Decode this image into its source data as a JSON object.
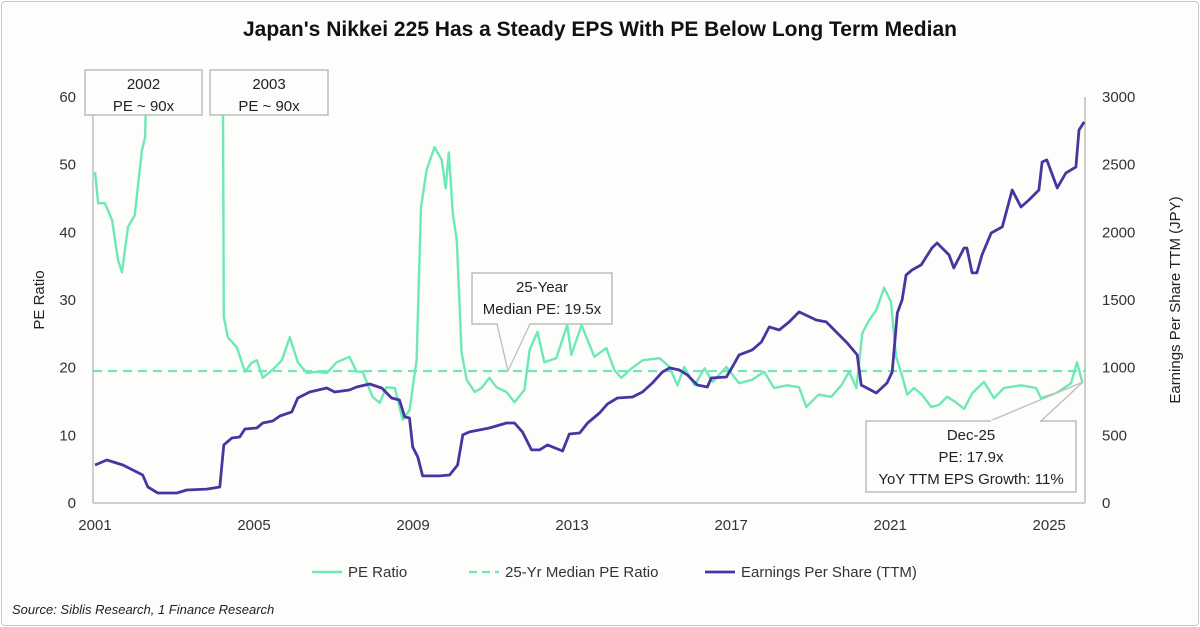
{
  "chart_data": {
    "type": "line",
    "title": "Japan's Nikkei 225 Has a Steady EPS With PE Below Long Term Median",
    "xlabel": "",
    "ylabel_left": "PE Ratio",
    "ylabel_right": "Earnings Per Share TTM (JPY)",
    "xlim": [
      2000.95,
      2025.9
    ],
    "ylim_left": [
      0,
      60
    ],
    "ylim_right": [
      0,
      3000
    ],
    "x_ticks": [
      "2001",
      "2005",
      "2009",
      "2013",
      "2017",
      "2021",
      "2025"
    ],
    "y_ticks_left": [
      "0",
      "10",
      "20",
      "30",
      "40",
      "50",
      "60"
    ],
    "y_ticks_right": [
      "0",
      "500",
      "1000",
      "1500",
      "2000",
      "2500",
      "3000"
    ],
    "grid": false,
    "legend_position": "bottom",
    "legend": [
      "PE Ratio",
      "25-Yr Median PE Ratio",
      "Earnings Per Share (TTM)"
    ],
    "colors": {
      "pe": "#6ee8b8",
      "median": "#6ee8b8",
      "eps": "#4a35a0"
    },
    "median_pe": 19.5,
    "series": [
      {
        "name": "PE Ratio",
        "axis": "left",
        "points": [
          [
            2001.0,
            48.9
          ],
          [
            2001.08,
            44.3
          ],
          [
            2001.25,
            44.3
          ],
          [
            2001.43,
            41.8
          ],
          [
            2001.58,
            35.9
          ],
          [
            2001.68,
            34.1
          ],
          [
            2001.83,
            40.8
          ],
          [
            2002.0,
            42.5
          ],
          [
            2002.18,
            52.1
          ],
          [
            2002.26,
            54
          ],
          [
            2002.4,
            90
          ],
          [
            2004.2,
            90
          ],
          [
            2004.24,
            27.5
          ],
          [
            2004.34,
            24.5
          ],
          [
            2004.57,
            23
          ],
          [
            2004.77,
            19.4
          ],
          [
            2004.94,
            20.7
          ],
          [
            2005.07,
            21.1
          ],
          [
            2005.22,
            18.5
          ],
          [
            2005.47,
            19.7
          ],
          [
            2005.7,
            21.1
          ],
          [
            2005.9,
            24.5
          ],
          [
            2006.1,
            20.8
          ],
          [
            2006.33,
            19.2
          ],
          [
            2006.58,
            19.4
          ],
          [
            2006.83,
            19.2
          ],
          [
            2007.08,
            20.8
          ],
          [
            2007.4,
            21.6
          ],
          [
            2007.58,
            19.4
          ],
          [
            2007.73,
            19.4
          ],
          [
            2007.98,
            15.7
          ],
          [
            2008.16,
            14.8
          ],
          [
            2008.33,
            17.1
          ],
          [
            2008.54,
            17
          ],
          [
            2008.74,
            12.3
          ],
          [
            2008.91,
            13.7
          ],
          [
            2009.09,
            21.1
          ],
          [
            2009.2,
            43.7
          ],
          [
            2009.34,
            49.2
          ],
          [
            2009.54,
            52.6
          ],
          [
            2009.72,
            50.7
          ],
          [
            2009.82,
            46.5
          ],
          [
            2009.9,
            51.8
          ],
          [
            2010.0,
            42.8
          ],
          [
            2010.1,
            38.8
          ],
          [
            2010.22,
            22.2
          ],
          [
            2010.35,
            18.2
          ],
          [
            2010.55,
            16.4
          ],
          [
            2010.72,
            17
          ],
          [
            2010.92,
            18.5
          ],
          [
            2011.1,
            17.1
          ],
          [
            2011.35,
            16.4
          ],
          [
            2011.55,
            14.9
          ],
          [
            2011.8,
            16.7
          ],
          [
            2011.93,
            22.6
          ],
          [
            2012.13,
            25.3
          ],
          [
            2012.3,
            20.8
          ],
          [
            2012.6,
            21.4
          ],
          [
            2012.88,
            26.3
          ],
          [
            2012.98,
            21.9
          ],
          [
            2013.24,
            26.3
          ],
          [
            2013.36,
            24.5
          ],
          [
            2013.56,
            21.6
          ],
          [
            2013.86,
            22.9
          ],
          [
            2014.07,
            19.6
          ],
          [
            2014.24,
            18.5
          ],
          [
            2014.5,
            19.9
          ],
          [
            2014.78,
            21.1
          ],
          [
            2015.2,
            21.4
          ],
          [
            2015.45,
            20.1
          ],
          [
            2015.65,
            17.4
          ],
          [
            2015.82,
            20.1
          ],
          [
            2016.08,
            17.4
          ],
          [
            2016.33,
            19.9
          ],
          [
            2016.53,
            17.9
          ],
          [
            2016.88,
            20.1
          ],
          [
            2017.2,
            17.7
          ],
          [
            2017.53,
            18.2
          ],
          [
            2017.83,
            19.4
          ],
          [
            2018.08,
            17
          ],
          [
            2018.41,
            17.4
          ],
          [
            2018.71,
            17.1
          ],
          [
            2018.89,
            14.2
          ],
          [
            2019.2,
            16
          ],
          [
            2019.52,
            15.7
          ],
          [
            2019.77,
            17.4
          ],
          [
            2019.97,
            19.4
          ],
          [
            2020.15,
            17
          ],
          [
            2020.3,
            25.1
          ],
          [
            2020.47,
            27
          ],
          [
            2020.65,
            28.5
          ],
          [
            2020.85,
            31.8
          ],
          [
            2021.02,
            29.7
          ],
          [
            2021.15,
            21.6
          ],
          [
            2021.28,
            19.2
          ],
          [
            2021.43,
            16
          ],
          [
            2021.6,
            17
          ],
          [
            2021.8,
            16
          ],
          [
            2022.03,
            14.2
          ],
          [
            2022.23,
            14.5
          ],
          [
            2022.43,
            15.7
          ],
          [
            2022.65,
            14.9
          ],
          [
            2022.86,
            13.9
          ],
          [
            2023.06,
            16.2
          ],
          [
            2023.36,
            17.9
          ],
          [
            2023.61,
            15.5
          ],
          [
            2023.86,
            17
          ],
          [
            2024.29,
            17.4
          ],
          [
            2024.67,
            17
          ],
          [
            2024.79,
            15.5
          ],
          [
            2025.17,
            16.2
          ],
          [
            2025.55,
            17.7
          ],
          [
            2025.7,
            20.8
          ],
          [
            2025.83,
            17.9
          ]
        ]
      },
      {
        "name": "Earnings Per Share (TTM)",
        "axis": "right",
        "points": [
          [
            2001.0,
            281
          ],
          [
            2001.3,
            318
          ],
          [
            2001.7,
            281
          ],
          [
            2002.2,
            207
          ],
          [
            2002.33,
            118
          ],
          [
            2002.58,
            74
          ],
          [
            2003.06,
            74
          ],
          [
            2003.31,
            96
          ],
          [
            2003.81,
            103
          ],
          [
            2004.14,
            118
          ],
          [
            2004.24,
            429
          ],
          [
            2004.44,
            480
          ],
          [
            2004.64,
            488
          ],
          [
            2004.77,
            547
          ],
          [
            2005.07,
            554
          ],
          [
            2005.22,
            591
          ],
          [
            2005.47,
            606
          ],
          [
            2005.65,
            643
          ],
          [
            2005.95,
            673
          ],
          [
            2006.1,
            776
          ],
          [
            2006.4,
            820
          ],
          [
            2006.83,
            850
          ],
          [
            2007.03,
            820
          ],
          [
            2007.4,
            835
          ],
          [
            2007.58,
            857
          ],
          [
            2007.91,
            879
          ],
          [
            2008.21,
            850
          ],
          [
            2008.46,
            776
          ],
          [
            2008.66,
            761
          ],
          [
            2008.79,
            636
          ],
          [
            2008.91,
            628
          ],
          [
            2008.99,
            414
          ],
          [
            2009.12,
            340
          ],
          [
            2009.24,
            200
          ],
          [
            2009.67,
            200
          ],
          [
            2009.92,
            207
          ],
          [
            2010.12,
            281
          ],
          [
            2010.25,
            503
          ],
          [
            2010.42,
            525
          ],
          [
            2010.92,
            554
          ],
          [
            2011.35,
            591
          ],
          [
            2011.55,
            591
          ],
          [
            2011.75,
            525
          ],
          [
            2011.98,
            392
          ],
          [
            2012.18,
            392
          ],
          [
            2012.38,
            429
          ],
          [
            2012.76,
            384
          ],
          [
            2012.93,
            510
          ],
          [
            2013.19,
            517
          ],
          [
            2013.39,
            591
          ],
          [
            2013.69,
            665
          ],
          [
            2013.89,
            732
          ],
          [
            2014.14,
            776
          ],
          [
            2014.52,
            783
          ],
          [
            2014.77,
            820
          ],
          [
            2015.02,
            887
          ],
          [
            2015.27,
            968
          ],
          [
            2015.45,
            998
          ],
          [
            2015.7,
            983
          ],
          [
            2015.9,
            946
          ],
          [
            2016.15,
            872
          ],
          [
            2016.4,
            857
          ],
          [
            2016.5,
            924
          ],
          [
            2016.88,
            931
          ],
          [
            2017.03,
            1005
          ],
          [
            2017.2,
            1094
          ],
          [
            2017.53,
            1131
          ],
          [
            2017.76,
            1190
          ],
          [
            2017.96,
            1301
          ],
          [
            2018.21,
            1278
          ],
          [
            2018.46,
            1338
          ],
          [
            2018.71,
            1412
          ],
          [
            2019.14,
            1352
          ],
          [
            2019.39,
            1338
          ],
          [
            2019.67,
            1256
          ],
          [
            2019.92,
            1182
          ],
          [
            2020.17,
            1094
          ],
          [
            2020.27,
            872
          ],
          [
            2020.65,
            813
          ],
          [
            2020.92,
            887
          ],
          [
            2021.05,
            968
          ],
          [
            2021.18,
            1404
          ],
          [
            2021.3,
            1500
          ],
          [
            2021.4,
            1685
          ],
          [
            2021.55,
            1722
          ],
          [
            2021.78,
            1759
          ],
          [
            2022.05,
            1884
          ],
          [
            2022.18,
            1921
          ],
          [
            2022.48,
            1833
          ],
          [
            2022.6,
            1737
          ],
          [
            2022.86,
            1884
          ],
          [
            2022.93,
            1884
          ],
          [
            2023.06,
            1700
          ],
          [
            2023.18,
            1700
          ],
          [
            2023.31,
            1833
          ],
          [
            2023.54,
            1995
          ],
          [
            2023.82,
            2040
          ],
          [
            2024.07,
            2313
          ],
          [
            2024.29,
            2187
          ],
          [
            2024.49,
            2239
          ],
          [
            2024.74,
            2313
          ],
          [
            2024.82,
            2520
          ],
          [
            2024.94,
            2535
          ],
          [
            2025.2,
            2328
          ],
          [
            2025.42,
            2439
          ],
          [
            2025.67,
            2483
          ],
          [
            2025.75,
            2756
          ],
          [
            2025.88,
            2816
          ]
        ]
      }
    ],
    "annotations": {
      "a2002": {
        "line1": "2002",
        "line2": "PE ~ 90x"
      },
      "a2003": {
        "line1": "2003",
        "line2": "PE ~ 90x"
      },
      "median": {
        "line1": "25-Year",
        "line2": "Median PE: 19.5x"
      },
      "latest": {
        "line1": "Dec-25",
        "line2": "PE: 17.9x",
        "line3": "YoY TTM EPS Growth: 11%"
      }
    }
  },
  "source": "Source: Siblis Research, 1 Finance Research"
}
